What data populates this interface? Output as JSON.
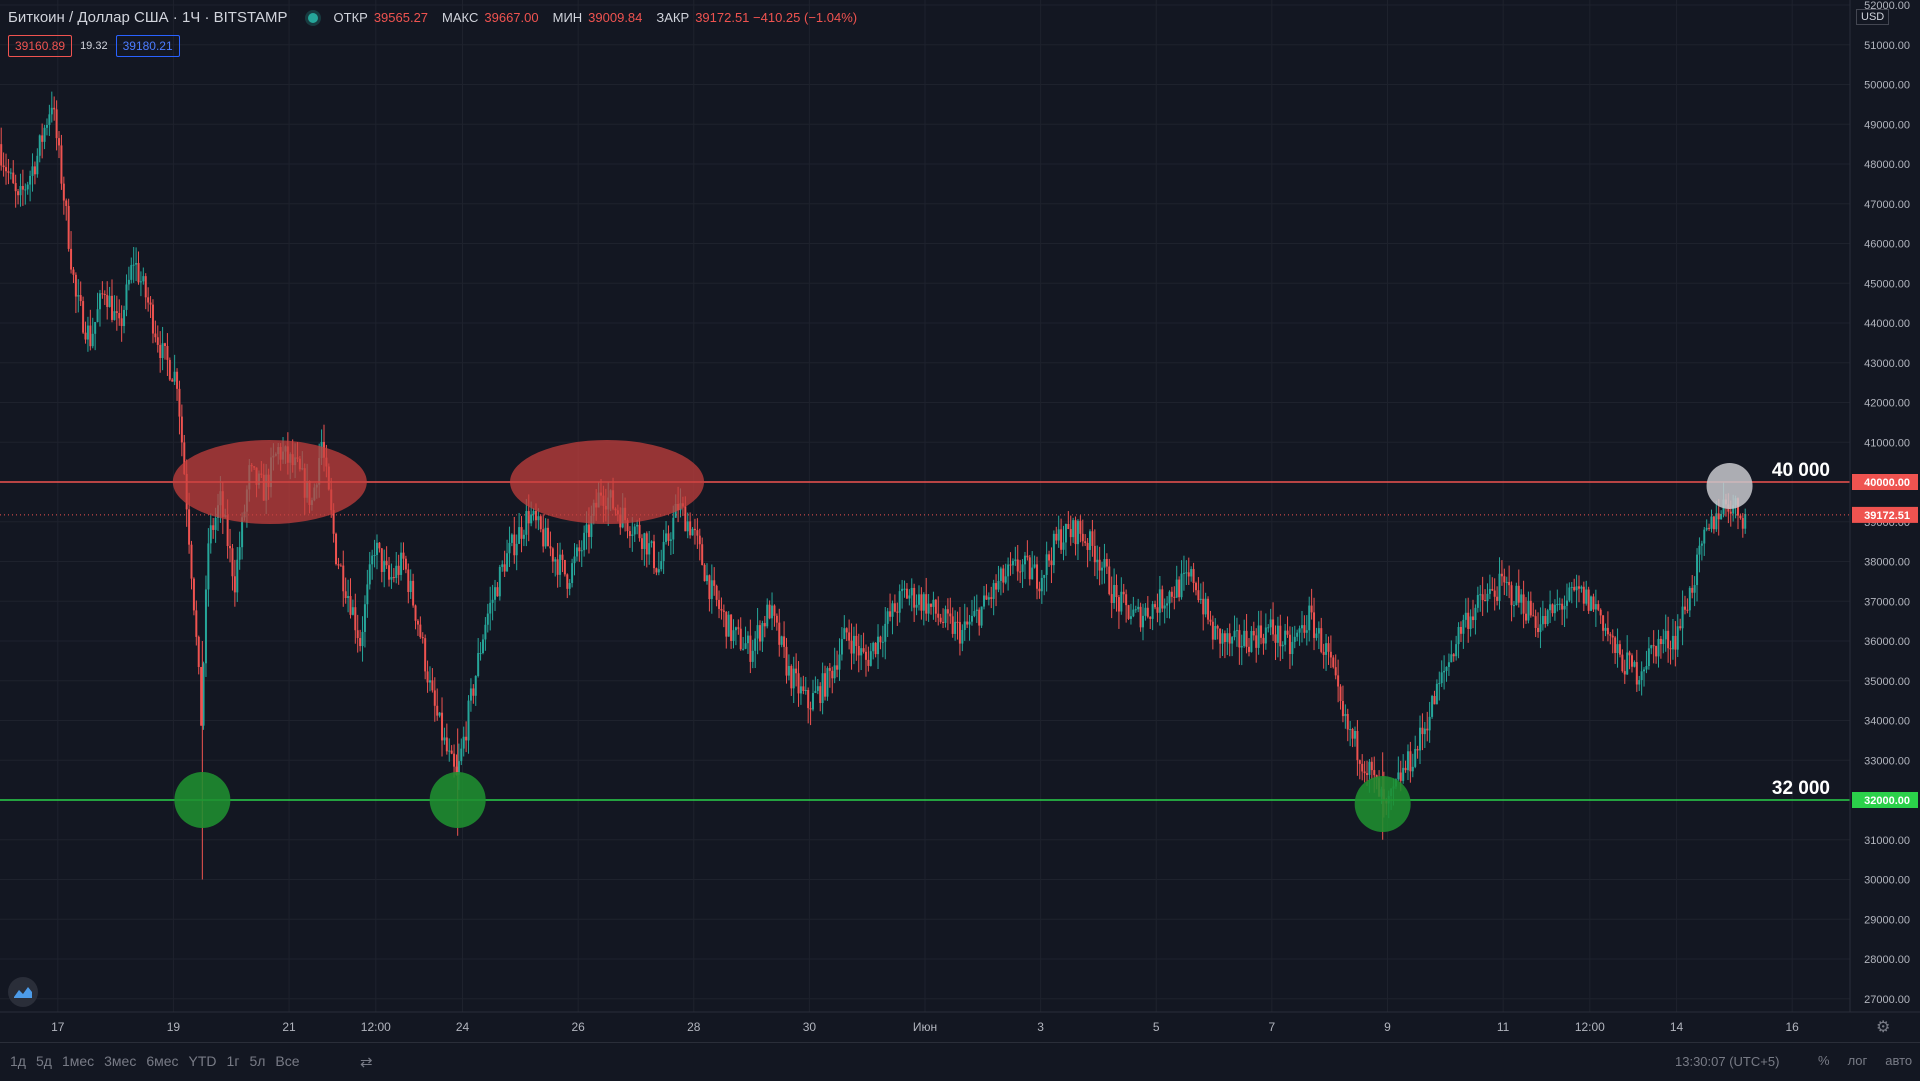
{
  "header": {
    "symbol": "Биткоин / Доллар США · 1Ч · BITSTAMP",
    "open_label": "ОТКР",
    "open_value": "39565.27",
    "high_label": "МАКС",
    "high_value": "39667.00",
    "low_label": "МИН",
    "low_value": "39009.84",
    "close_label": "ЗАКР",
    "close_value": "39172.51 −410.25 (−1.04%)"
  },
  "quote": {
    "bid": "39160.89",
    "spread": "19.32",
    "ask": "39180.21"
  },
  "currency": "USD",
  "chart_data": {
    "type": "candlestick",
    "price_axis": {
      "min": 26500,
      "max": 52000,
      "ticks": [
        52000,
        51000,
        50000,
        49000,
        48000,
        47000,
        46000,
        45000,
        44000,
        43000,
        42000,
        41000,
        40000,
        39000,
        38000,
        37000,
        36000,
        35000,
        34000,
        33000,
        32000,
        31000,
        30000,
        29000,
        28000,
        27000
      ],
      "tick_labels": [
        "52000.00",
        "51000.00",
        "50000.00",
        "49000.00",
        "48000.00",
        "47000.00",
        "46000.00",
        "45000.00",
        "44000.00",
        "43000.00",
        "42000.00",
        "41000.00",
        "40000.00",
        "39000.00",
        "38000.00",
        "37000.00",
        "36000.00",
        "35000.00",
        "34000.00",
        "33000.00",
        "32000.00",
        "31000.00",
        "30000.00",
        "29000.00",
        "28000.00",
        "27000.00"
      ]
    },
    "time_axis": {
      "start": "2021-05-16T00:00",
      "end": "2021-06-17T00:00",
      "ticks": [
        "2021-05-17",
        "2021-05-19",
        "2021-05-21",
        "2021-05-22T12:00",
        "2021-05-24",
        "2021-05-26",
        "2021-05-28",
        "2021-05-30",
        "2021-06-01",
        "2021-06-03",
        "2021-06-05",
        "2021-06-07",
        "2021-06-09",
        "2021-06-11",
        "2021-06-12T12:00",
        "2021-06-14",
        "2021-06-16"
      ],
      "tick_labels": [
        "17",
        "19",
        "21",
        "12:00",
        "24",
        "26",
        "28",
        "30",
        "Июн",
        "3",
        "5",
        "7",
        "9",
        "11",
        "12:00",
        "14",
        "16"
      ]
    },
    "price_path": [
      [
        "2021-05-16T00:00",
        48500
      ],
      [
        "2021-05-16T08:00",
        47000
      ],
      [
        "2021-05-16T16:00",
        48200
      ],
      [
        "2021-05-16T22:00",
        49600
      ],
      [
        "2021-05-17T03:00",
        47200
      ],
      [
        "2021-05-17T08:00",
        44600
      ],
      [
        "2021-05-17T14:00",
        43600
      ],
      [
        "2021-05-17T20:00",
        44900
      ],
      [
        "2021-05-18T02:00",
        43800
      ],
      [
        "2021-05-18T08:00",
        45600
      ],
      [
        "2021-05-18T14:00",
        44500
      ],
      [
        "2021-05-18T20:00",
        43200
      ],
      [
        "2021-05-19T02:00",
        42600
      ],
      [
        "2021-05-19T06:00",
        39500
      ],
      [
        "2021-05-19T09:00",
        37000
      ],
      [
        "2021-05-19T12:00",
        34000
      ],
      [
        "2021-05-19T15:00",
        38500
      ],
      [
        "2021-05-19T20:00",
        39500
      ],
      [
        "2021-05-20T02:00",
        37500
      ],
      [
        "2021-05-20T08:00",
        40200
      ],
      [
        "2021-05-20T14:00",
        39800
      ],
      [
        "2021-05-20T20:00",
        40800
      ],
      [
        "2021-05-21T04:00",
        40300
      ],
      [
        "2021-05-21T10:00",
        39500
      ],
      [
        "2021-05-21T14:00",
        41000
      ],
      [
        "2021-05-21T20:00",
        38200
      ],
      [
        "2021-05-22T02:00",
        37000
      ],
      [
        "2021-05-22T06:00",
        36000
      ],
      [
        "2021-05-22T12:00",
        38400
      ],
      [
        "2021-05-22T18:00",
        37500
      ],
      [
        "2021-05-23T00:00",
        38000
      ],
      [
        "2021-05-23T06:00",
        36500
      ],
      [
        "2021-05-23T12:00",
        34500
      ],
      [
        "2021-05-23T18:00",
        33200
      ],
      [
        "2021-05-23T22:00",
        32500
      ],
      [
        "2021-05-24T04:00",
        34500
      ],
      [
        "2021-05-24T10:00",
        36500
      ],
      [
        "2021-05-24T18:00",
        38000
      ],
      [
        "2021-05-25T04:00",
        39200
      ],
      [
        "2021-05-25T12:00",
        38400
      ],
      [
        "2021-05-25T20:00",
        37600
      ],
      [
        "2021-05-26T04:00",
        38600
      ],
      [
        "2021-05-26T10:00",
        39800
      ],
      [
        "2021-05-26T18:00",
        39200
      ],
      [
        "2021-05-27T04:00",
        38600
      ],
      [
        "2021-05-27T10:00",
        37800
      ],
      [
        "2021-05-27T18:00",
        39400
      ],
      [
        "2021-05-28T00:00",
        38800
      ],
      [
        "2021-05-28T08:00",
        37200
      ],
      [
        "2021-05-28T16:00",
        36200
      ],
      [
        "2021-05-29T00:00",
        35800
      ],
      [
        "2021-05-29T08:00",
        36800
      ],
      [
        "2021-05-29T16:00",
        35200
      ],
      [
        "2021-05-30T00:00",
        34400
      ],
      [
        "2021-05-30T08:00",
        35000
      ],
      [
        "2021-05-30T16:00",
        36200
      ],
      [
        "2021-05-31T00:00",
        35500
      ],
      [
        "2021-05-31T08:00",
        36400
      ],
      [
        "2021-05-31T16:00",
        37200
      ],
      [
        "2021-06-01T00:00",
        37000
      ],
      [
        "2021-06-01T08:00",
        36500
      ],
      [
        "2021-06-01T16:00",
        36200
      ],
      [
        "2021-06-02T00:00",
        36800
      ],
      [
        "2021-06-02T08:00",
        37500
      ],
      [
        "2021-06-02T16:00",
        37900
      ],
      [
        "2021-06-03T00:00",
        37600
      ],
      [
        "2021-06-03T08:00",
        38600
      ],
      [
        "2021-06-03T16:00",
        38800
      ],
      [
        "2021-06-04T00:00",
        38200
      ],
      [
        "2021-06-04T08:00",
        37000
      ],
      [
        "2021-06-04T16:00",
        36600
      ],
      [
        "2021-06-05T00:00",
        36900
      ],
      [
        "2021-06-05T08:00",
        37300
      ],
      [
        "2021-06-05T16:00",
        37600
      ],
      [
        "2021-06-06T00:00",
        36200
      ],
      [
        "2021-06-06T08:00",
        35900
      ],
      [
        "2021-06-06T16:00",
        36100
      ],
      [
        "2021-06-07T00:00",
        36300
      ],
      [
        "2021-06-07T08:00",
        35800
      ],
      [
        "2021-06-07T16:00",
        36600
      ],
      [
        "2021-06-08T00:00",
        35600
      ],
      [
        "2021-06-08T06:00",
        34000
      ],
      [
        "2021-06-08T12:00",
        33300
      ],
      [
        "2021-06-08T18:00",
        32600
      ],
      [
        "2021-06-09T00:00",
        31700
      ],
      [
        "2021-06-09T06:00",
        32600
      ],
      [
        "2021-06-09T12:00",
        33200
      ],
      [
        "2021-06-09T18:00",
        34200
      ],
      [
        "2021-06-10T00:00",
        35200
      ],
      [
        "2021-06-10T08:00",
        36500
      ],
      [
        "2021-06-10T16:00",
        37000
      ],
      [
        "2021-06-11T00:00",
        37400
      ],
      [
        "2021-06-11T08:00",
        37000
      ],
      [
        "2021-06-11T16:00",
        36400
      ],
      [
        "2021-06-12T00:00",
        36900
      ],
      [
        "2021-06-12T08:00",
        37200
      ],
      [
        "2021-06-12T16:00",
        36800
      ],
      [
        "2021-06-13T00:00",
        35600
      ],
      [
        "2021-06-13T08:00",
        35200
      ],
      [
        "2021-06-13T16:00",
        35900
      ],
      [
        "2021-06-14T00:00",
        36100
      ],
      [
        "2021-06-14T06:00",
        37200
      ],
      [
        "2021-06-14T12:00",
        38500
      ],
      [
        "2021-06-14T18:00",
        39300
      ],
      [
        "2021-06-14T22:00",
        39500
      ],
      [
        "2021-06-15T04:00",
        39172.51
      ]
    ],
    "levels": [
      {
        "price": 40000,
        "label": "40 000",
        "price_label": "40000.00",
        "color": "#ef5350"
      },
      {
        "price": 32000,
        "label": "32 000",
        "price_label": "32000.00",
        "color": "#2bd14a"
      }
    ],
    "last_price": {
      "price": 39172.51,
      "price_label": "39172.51",
      "color": "#ef5350"
    },
    "resistance_zones": [
      {
        "time": "2021-05-20T16:00",
        "price": 40000,
        "color": "#c9403d"
      },
      {
        "time": "2021-05-26T12:00",
        "price": 40000,
        "color": "#c9403d"
      }
    ],
    "support_touches": [
      {
        "time": "2021-05-19T12:00",
        "price": 32000,
        "color": "#1f8f30"
      },
      {
        "time": "2021-05-23T22:00",
        "price": 32000,
        "color": "#1f8f30"
      },
      {
        "time": "2021-06-08T22:00",
        "price": 31900,
        "color": "#1f8f30"
      }
    ],
    "current_marker": {
      "time": "2021-06-14T22:00",
      "price": 40000,
      "color": "#c8c8cc"
    },
    "colors": {
      "up": "#26a69a",
      "down": "#ef5350",
      "background": "#131722",
      "grid": "#1e222d"
    }
  },
  "bottom_bar": {
    "ranges": [
      "1д",
      "5д",
      "1мес",
      "3мес",
      "6мес",
      "YTD",
      "1г",
      "5л",
      "Все"
    ],
    "calendar_icon": "calendar-icon",
    "clock": "13:30:07 (UTC+5)",
    "options": [
      "%",
      "лог",
      "авто"
    ]
  }
}
